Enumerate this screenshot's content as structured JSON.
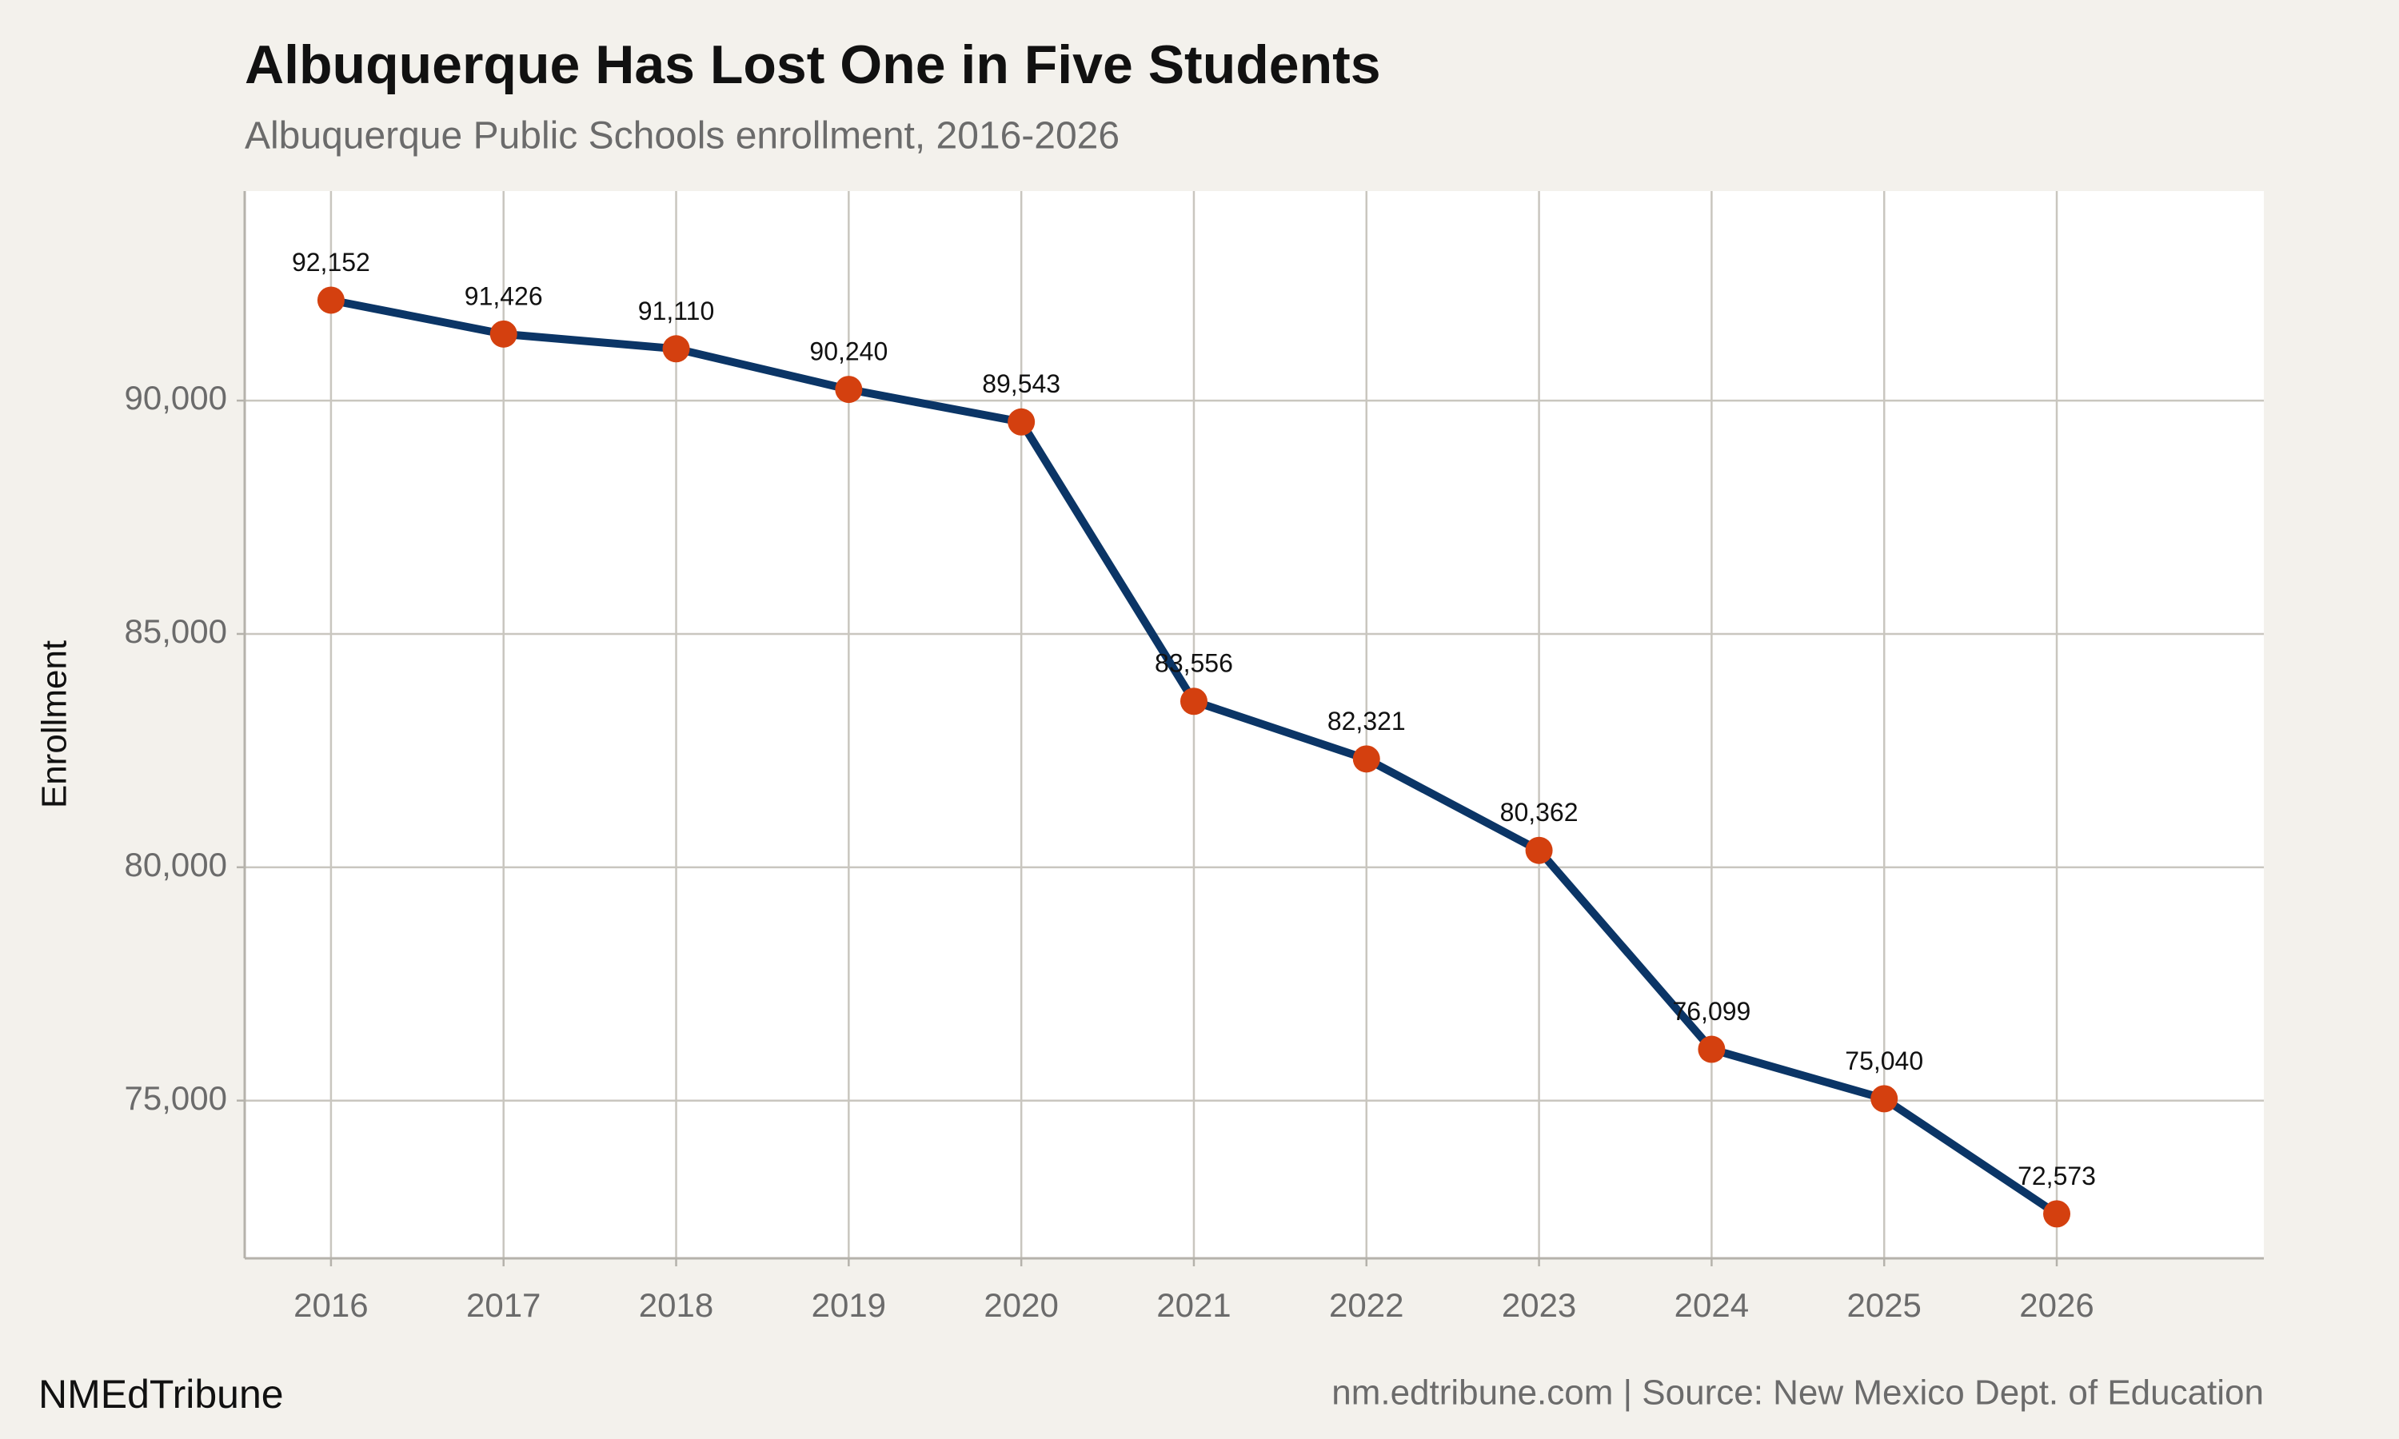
{
  "chart_data": {
    "type": "line",
    "title": "Albuquerque Has Lost One in Five Students",
    "subtitle": "Albuquerque Public Schools enrollment, 2016-2026",
    "y_label": "Enrollment",
    "brand": "NMEdTribune",
    "source": "nm.edtribune.com | Source: New Mexico Dept. of Education",
    "x": [
      2016,
      2017,
      2018,
      2019,
      2020,
      2021,
      2022,
      2023,
      2024,
      2025,
      2026
    ],
    "values": [
      92152,
      91426,
      91110,
      90240,
      89543,
      83556,
      82321,
      80362,
      76099,
      75040,
      72573
    ],
    "value_labels": [
      "92,152",
      "91,426",
      "91,110",
      "90,240",
      "89,543",
      "83,556",
      "82,321",
      "80,362",
      "76,099",
      "75,040",
      "72,573"
    ],
    "color": "#0b3566",
    "marker_color": "#d4400f",
    "xlim": [
      2015.5,
      2027.2
    ],
    "xticks": [
      2016,
      2017,
      2018,
      2019,
      2020,
      2021,
      2022,
      2023,
      2024,
      2025,
      2026
    ],
    "ylim": [
      71620,
      94490
    ],
    "yticks": [
      {
        "value": 75000,
        "label": "75,000"
      },
      {
        "value": 80000,
        "label": "80,000"
      },
      {
        "value": 85000,
        "label": "85,000"
      },
      {
        "value": 90000,
        "label": "90,000"
      }
    ],
    "grid": true
  }
}
